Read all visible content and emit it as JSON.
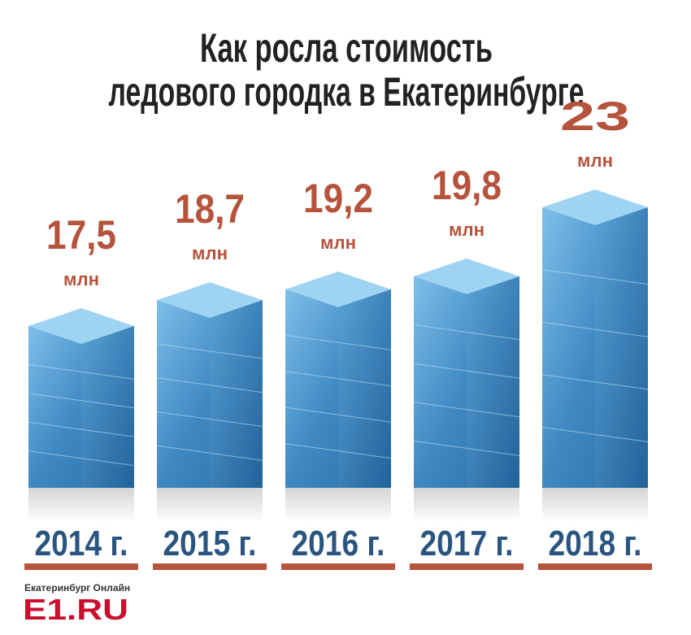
{
  "chart_data": {
    "type": "bar",
    "title": [
      "Как росла стоимость",
      "ледового городка в Екатеринбурге"
    ],
    "categories": [
      "2014 г.",
      "2015 г.",
      "2016 г.",
      "2017 г.",
      "2018 г."
    ],
    "values": [
      17.5,
      18.7,
      19.2,
      19.8,
      23
    ],
    "value_labels": [
      "17,5",
      "18,7",
      "19,2",
      "19,8",
      "23"
    ],
    "value_unit": "млн",
    "color": "#4a8fc4",
    "ylim": [
      10,
      23
    ],
    "logo": {
      "tagline": "Екатеринбург Онлайн",
      "name": "E1.RU"
    }
  }
}
